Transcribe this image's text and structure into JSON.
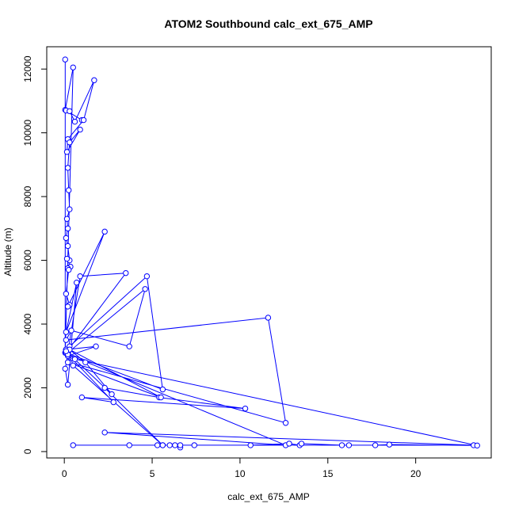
{
  "chart_data": {
    "type": "line",
    "title": "ATOM2 Southbound calc_ext_675_AMP",
    "xlabel": "calc_ext_675_AMP",
    "ylabel": "Altitude (m)",
    "xlim": [
      -1,
      24.3
    ],
    "ylim": [
      -200,
      12700
    ],
    "xticks": [
      0,
      5,
      10,
      15,
      20
    ],
    "yticks": [
      0,
      2000,
      4000,
      6000,
      8000,
      10000,
      12000
    ],
    "markers": "open-circle",
    "grid": false,
    "legend": "none",
    "color": "#0000ff",
    "series": [
      {
        "x": [
          0.05,
          0.05,
          0.5,
          0.05,
          1.0,
          0.1,
          0.3,
          0.6,
          1.7,
          1.1,
          0.2,
          0.15,
          0.9,
          0.3,
          0.2,
          0.25,
          0.3,
          0.15,
          0.2,
          0.1,
          0.2,
          0.3,
          0.15,
          0.35,
          0.2,
          0.25,
          0.1,
          0.3,
          0.2,
          2.3,
          0.1,
          0.7,
          0.2,
          0.05,
          0.3,
          0.1,
          4.7,
          5.6,
          0.1,
          3.5,
          0.9,
          0.2,
          4.6,
          3.7,
          0.4,
          0.1,
          11.6,
          12.6,
          0.3,
          0.1,
          0.2,
          1.8,
          0.1,
          0.5,
          5.6,
          2.3,
          5.4,
          10.3,
          1.0,
          2.8,
          0.2,
          12.6,
          2.3,
          23.3,
          0.5,
          3.7,
          5.3,
          5.6,
          6.0,
          6.3,
          6.6,
          6.6,
          7.4,
          10.6,
          12.8,
          13.4,
          13.5,
          15.8,
          16.2,
          17.7,
          18.5,
          23.5,
          0.6,
          0.2,
          5.5,
          0.3,
          1.2,
          2.7,
          0.1
        ],
        "y": [
          12300,
          3100,
          12050,
          10720,
          10400,
          10700,
          10680,
          10350,
          11650,
          10400,
          9800,
          9400,
          10100,
          9700,
          8900,
          8200,
          7600,
          7300,
          7000,
          6700,
          6450,
          6000,
          6050,
          5800,
          5750,
          5700,
          4950,
          4600,
          4550,
          6900,
          3750,
          5300,
          2100,
          2600,
          3300,
          3200,
          5500,
          1950,
          3100,
          5600,
          5500,
          3100,
          5100,
          3300,
          3800,
          3500,
          4200,
          900,
          2800,
          3100,
          3000,
          3300,
          3200,
          2700,
          200,
          2000,
          1700,
          1350,
          1700,
          1550,
          3050,
          200,
          600,
          200,
          200,
          200,
          200,
          200,
          200,
          200,
          130,
          200,
          200,
          200,
          250,
          200,
          250,
          200,
          200,
          200,
          220,
          190,
          2900,
          2800,
          1700,
          3200,
          2800,
          1800,
          3150
        ]
      }
    ]
  }
}
